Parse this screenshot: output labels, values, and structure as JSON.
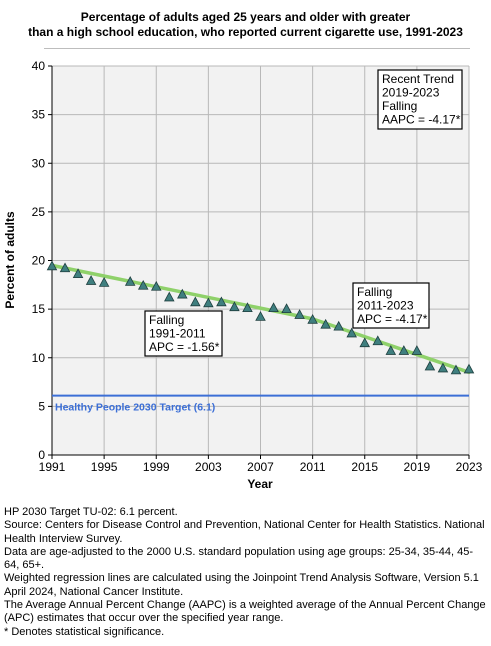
{
  "title_lines": [
    "Percentage of adults aged 25 years and older with greater",
    "than a high school education, who reported current cigarette use, 1991-2023"
  ],
  "chart_data": {
    "type": "scatter",
    "xlabel": "Year",
    "ylabel": "Percent of adults",
    "xlim": [
      1991,
      2023
    ],
    "ylim": [
      0,
      40
    ],
    "x_ticks": [
      "1991",
      "1995",
      "1999",
      "2003",
      "2007",
      "2011",
      "2015",
      "2019",
      "2023"
    ],
    "y_ticks": [
      "0",
      "5",
      "10",
      "15",
      "20",
      "25",
      "30",
      "35",
      "40"
    ],
    "grid": true,
    "series": [
      {
        "x": [
          1991,
          1992,
          1993,
          1994,
          1995,
          1997,
          1998,
          1999,
          2000,
          2001,
          2002,
          2003,
          2004,
          2005,
          2006,
          2007,
          2008,
          2009,
          2010,
          2011,
          2012,
          2013,
          2014,
          2015,
          2016,
          2017,
          2018,
          2019,
          2020,
          2021,
          2022,
          2023
        ],
        "y": [
          19.4,
          19.2,
          18.6,
          17.9,
          17.7,
          17.8,
          17.4,
          17.3,
          16.2,
          16.5,
          15.7,
          15.6,
          15.7,
          15.2,
          15.1,
          14.2,
          15.1,
          15.0,
          14.4,
          13.9,
          13.4,
          13.2,
          12.5,
          11.5,
          11.7,
          10.7,
          10.7,
          10.7,
          9.1,
          8.9,
          8.7,
          8.8
        ],
        "marker": "triangle",
        "color": "#3f7f7f"
      }
    ],
    "trend_segments": [
      {
        "x": [
          1991,
          2011
        ],
        "y": [
          19.5,
          14.0
        ],
        "color": "#8fd16a"
      },
      {
        "x": [
          2011,
          2023
        ],
        "y": [
          14.0,
          8.5
        ],
        "color": "#8fd16a"
      }
    ],
    "target": {
      "value": 6.1,
      "label": "Healthy People 2030 Target (6.1)",
      "color": "#3c6fd6"
    },
    "annotations": [
      {
        "lines": [
          "Falling",
          "1991-2011",
          "APC = -1.56*"
        ]
      },
      {
        "lines": [
          "Falling",
          "2011-2023",
          "APC = -4.17*"
        ]
      },
      {
        "lines": [
          "Recent Trend",
          "2019-2023",
          "Falling",
          "AAPC = -4.17*"
        ]
      }
    ]
  },
  "footnotes": [
    "HP 2030 Target TU-02: 6.1 percent.",
    "Source: Centers for Disease Control and Prevention, National Center for Health Statistics. National Health Interview Survey.",
    "Data are age-adjusted to the 2000 U.S. standard population using age groups: 25-34, 35-44, 45-64, 65+.",
    "Weighted regression lines are calculated using the Joinpoint Trend Analysis Software, Version 5.1 April 2024, National Cancer Institute.",
    "The Average Annual Percent Change (AAPC) is a weighted average of the Annual Percent Change (APC) estimates that occur over the specified year range.",
    "* Denotes statistical significance."
  ]
}
